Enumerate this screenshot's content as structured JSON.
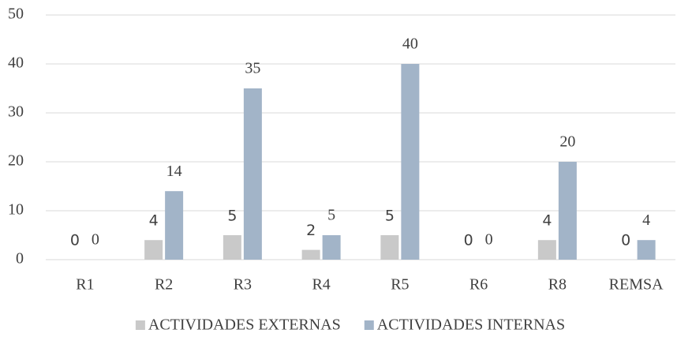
{
  "chart_data": {
    "type": "bar",
    "categories": [
      "R1",
      "R2",
      "R3",
      "R4",
      "R5",
      "R6",
      "R8",
      "REMSA"
    ],
    "series": [
      {
        "name": "ACTIVIDADES EXTERNAS",
        "color": "#c9c9c9",
        "values": [
          0,
          4,
          5,
          2,
          5,
          0,
          4,
          0
        ]
      },
      {
        "name": "ACTIVIDADES INTERNAS",
        "color": "#a2b4c8",
        "values": [
          0,
          14,
          35,
          5,
          40,
          0,
          20,
          4
        ]
      }
    ],
    "ylim": [
      0,
      50
    ],
    "yticks": [
      0,
      10,
      20,
      30,
      40,
      50
    ],
    "grid": true,
    "legend": "bottom"
  }
}
